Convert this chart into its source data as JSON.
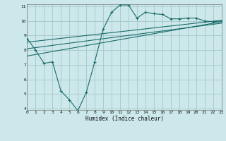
{
  "title": "",
  "xlabel": "Humidex (Indice chaleur)",
  "ylabel": "",
  "bg_color": "#cce8ea",
  "grid_color": "#aacccc",
  "line_color": "#1a6b6b",
  "x_min": 0,
  "x_max": 23,
  "y_min": 4,
  "y_max": 11,
  "yticks": [
    4,
    5,
    6,
    7,
    8,
    9,
    10,
    11
  ],
  "xticks": [
    0,
    1,
    2,
    3,
    4,
    5,
    6,
    7,
    8,
    9,
    10,
    11,
    12,
    13,
    14,
    15,
    16,
    17,
    18,
    19,
    20,
    21,
    22,
    23
  ],
  "zigzag_x": [
    0,
    1,
    2,
    3,
    4,
    5,
    6,
    7,
    8,
    9,
    10,
    11,
    12,
    13,
    14,
    15,
    16,
    17,
    18,
    19,
    20,
    21,
    22,
    23
  ],
  "zigzag_y": [
    8.8,
    8.0,
    7.1,
    7.2,
    5.2,
    4.6,
    3.85,
    5.1,
    7.2,
    9.45,
    10.6,
    11.1,
    11.1,
    10.2,
    10.6,
    10.5,
    10.45,
    10.15,
    10.15,
    10.2,
    10.2,
    10.0,
    9.95,
    10.0
  ],
  "line1_x": [
    0,
    23
  ],
  "line1_y": [
    8.55,
    10.05
  ],
  "line2_x": [
    0,
    23
  ],
  "line2_y": [
    8.1,
    9.85
  ],
  "line3_x": [
    0,
    23
  ],
  "line3_y": [
    7.6,
    9.95
  ]
}
